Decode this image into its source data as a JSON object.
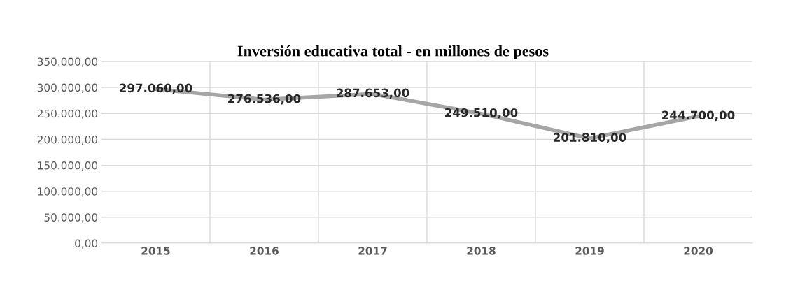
{
  "chart_data": {
    "type": "line",
    "title": "Inversión educativa total - en millones de pesos",
    "categories": [
      "2015",
      "2016",
      "2017",
      "2018",
      "2019",
      "2020"
    ],
    "series": [
      {
        "color": "#a6a6a6",
        "values": [
          297060,
          276536,
          287653,
          249510,
          201810,
          244700
        ],
        "value_labels": [
          "297.060,00",
          "276.536,00",
          "287.653,00",
          "249.510,00",
          "201.810,00",
          "244.700,00"
        ]
      }
    ],
    "ylim": [
      0,
      350000
    ],
    "yticks": [
      {
        "value": 0,
        "label": "0,00"
      },
      {
        "value": 50000,
        "label": "50.000,00"
      },
      {
        "value": 100000,
        "label": "100.000,00"
      },
      {
        "value": 150000,
        "label": "150.000,00"
      },
      {
        "value": 200000,
        "label": "200.000,00"
      },
      {
        "value": 250000,
        "label": "250.000,00"
      },
      {
        "value": 300000,
        "label": "300.000,00"
      },
      {
        "value": 350000,
        "label": "350.000,00"
      }
    ],
    "grid": true,
    "marker": "none",
    "line_style": "solid"
  }
}
